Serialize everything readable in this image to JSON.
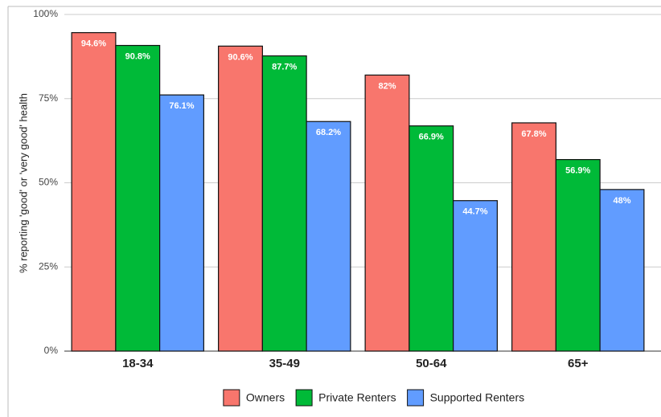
{
  "chart_data": {
    "type": "bar",
    "y_label": "% reporting 'good' or 'very good' health",
    "categories": [
      "18-34",
      "35-49",
      "50-64",
      "65+"
    ],
    "series": [
      {
        "name": "Owners",
        "color": "#f8766d",
        "values": [
          94.6,
          90.6,
          82,
          67.8
        ],
        "value_labels": [
          "94.6%",
          "90.6%",
          "82%",
          "67.8%"
        ]
      },
      {
        "name": "Private Renters",
        "color": "#00ba38",
        "values": [
          90.8,
          87.7,
          66.9,
          56.9
        ],
        "value_labels": [
          "90.8%",
          "87.7%",
          "66.9%",
          "56.9%"
        ]
      },
      {
        "name": "Supported Renters",
        "color": "#619cff",
        "values": [
          76.1,
          68.2,
          44.7,
          48
        ],
        "value_labels": [
          "76.1%",
          "68.2%",
          "44.7%",
          "48%"
        ]
      }
    ],
    "ylim": [
      0,
      100
    ],
    "yticks": [
      {
        "value": 0,
        "label": "0%"
      },
      {
        "value": 25,
        "label": "25%"
      },
      {
        "value": 50,
        "label": "50%"
      },
      {
        "value": 75,
        "label": "75%"
      },
      {
        "value": 100,
        "label": "100%"
      }
    ],
    "grid": true,
    "legend": "bottom"
  }
}
